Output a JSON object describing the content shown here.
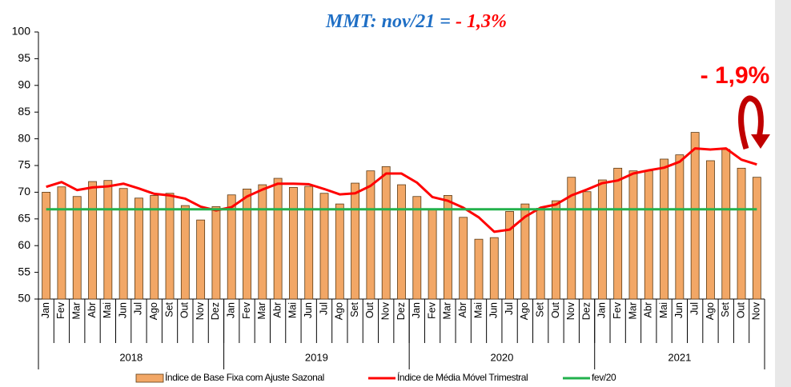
{
  "chart_data": {
    "type": "bar_line",
    "title_parts": [
      "MMT: nov/21 = ",
      "- 1,3%"
    ],
    "annotation": "- 1,9%",
    "categories": [
      "Jan",
      "Fev",
      "Mar",
      "Abr",
      "Mai",
      "Jun",
      "Jul",
      "Ago",
      "Set",
      "Out",
      "Nov",
      "Dez",
      "Jan",
      "Fev",
      "Mar",
      "Abr",
      "Mai",
      "Jun",
      "Jul",
      "Ago",
      "Set",
      "Out",
      "Nov",
      "Dez",
      "Jan",
      "Fev",
      "Mar",
      "Abr",
      "Mai",
      "Jun",
      "Jul",
      "Ago",
      "Set",
      "Out",
      "Nov",
      "Dez",
      "Jan",
      "Fev",
      "Mar",
      "Abr",
      "Mai",
      "Jun",
      "Jul",
      "Ago",
      "Set",
      "Out",
      "Nov"
    ],
    "groups": [
      {
        "label": "2018",
        "size": 12
      },
      {
        "label": "2019",
        "size": 12
      },
      {
        "label": "2020",
        "size": 12
      },
      {
        "label": "2021",
        "size": 11
      }
    ],
    "series": [
      {
        "name": "Índice de Base Fixa com Ajuste Sazonal",
        "kind": "bar",
        "color": "#f2a766",
        "values": [
          70,
          71,
          69.2,
          72,
          72.2,
          70.7,
          68.9,
          69.4,
          69.8,
          67.5,
          64.8,
          67.3,
          69.5,
          70.6,
          71.4,
          72.6,
          70.9,
          71.1,
          69.8,
          67.8,
          71.7,
          74,
          74.8,
          71.4,
          69.2,
          66.7,
          69.4,
          65.3,
          61.2,
          61.5,
          66.4,
          67.8,
          67,
          68.4,
          72.8,
          70.1,
          72.3,
          74.5,
          74,
          74,
          76.2,
          77,
          81.2,
          75.9,
          78,
          74.5,
          72.8
        ]
      },
      {
        "name": "Índice de Média Móvel Trimestral",
        "kind": "line",
        "color": "#ff0000",
        "values": [
          71,
          71.9,
          70.4,
          70.9,
          71.1,
          71.6,
          70.7,
          69.7,
          69.4,
          68.8,
          67.3,
          66.6,
          67.2,
          69.2,
          70.5,
          71.6,
          71.6,
          71.5,
          70.6,
          69.6,
          69.8,
          71.2,
          73.5,
          73.5,
          71.8,
          69.1,
          68.4,
          67.1,
          65.3,
          62.6,
          63,
          65.4,
          67.1,
          67.7,
          69.4,
          70.5,
          71.7,
          72.2,
          73.5,
          74.1,
          74.6,
          75.7,
          78.2,
          78,
          78.2,
          76.1,
          75.2
        ]
      },
      {
        "name": "fev/20",
        "kind": "line",
        "color": "#22b14c",
        "values": [
          66.8,
          66.8,
          66.8,
          66.8,
          66.8,
          66.8,
          66.8,
          66.8,
          66.8,
          66.8,
          66.8,
          66.8,
          66.8,
          66.8,
          66.8,
          66.8,
          66.8,
          66.8,
          66.8,
          66.8,
          66.8,
          66.8,
          66.8,
          66.8,
          66.8,
          66.8,
          66.8,
          66.8,
          66.8,
          66.8,
          66.8,
          66.8,
          66.8,
          66.8,
          66.8,
          66.8,
          66.8,
          66.8,
          66.8,
          66.8,
          66.8,
          66.8,
          66.8,
          66.8,
          66.8,
          66.8,
          66.8
        ]
      }
    ],
    "ylim": [
      50,
      100
    ],
    "yticks": [
      50,
      55,
      60,
      65,
      70,
      75,
      80,
      85,
      90,
      95,
      100
    ],
    "grid": false,
    "legend": "bottom"
  }
}
